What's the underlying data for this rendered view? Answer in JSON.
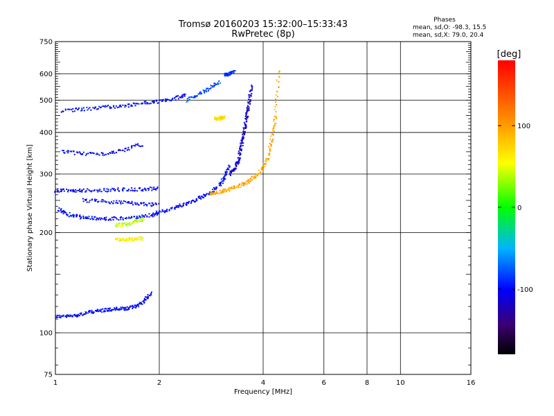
{
  "header": {
    "title_line1": "Tromsø 20160203 15:32:00–15:33:43",
    "title_line2": "RwPretec (8p)"
  },
  "phase_box": {
    "heading": "Phases",
    "line_o": "mean, sd,O: -98.3, 15.5",
    "line_x": "mean, sd,X:  79.0, 20.4"
  },
  "colorbar": {
    "label": "[deg]",
    "range": [
      -180,
      180
    ],
    "ticks": [
      {
        "value": 100,
        "label": "100"
      },
      {
        "value": 0,
        "label": "0"
      },
      {
        "value": -100,
        "label": "-100"
      }
    ]
  },
  "chart_data": {
    "type": "scatter",
    "title": "Tromsø 20160203 15:32:00–15:33:43",
    "subtitle": "RwPretec (8p)",
    "xlabel": "Frequency [MHz]",
    "ylabel": "Stationary phase Virtual Height [km]",
    "xscale": "log",
    "yscale": "log",
    "xlim": [
      1,
      16
    ],
    "ylim": [
      75,
      750
    ],
    "x_ticks": [
      {
        "value": 1,
        "label": "1"
      },
      {
        "value": 2,
        "label": "2"
      },
      {
        "value": 4,
        "label": "4"
      },
      {
        "value": 6,
        "label": "6"
      },
      {
        "value": 8,
        "label": "8"
      },
      {
        "value": 10,
        "label": "10"
      },
      {
        "value": 16,
        "label": "16"
      }
    ],
    "y_ticks": [
      {
        "value": 75,
        "label": "75"
      },
      {
        "value": 100,
        "label": "100"
      },
      {
        "value": 200,
        "label": "200"
      },
      {
        "value": 300,
        "label": "300"
      },
      {
        "value": 400,
        "label": "400"
      },
      {
        "value": 500,
        "label": "500"
      },
      {
        "value": 600,
        "label": "600"
      },
      {
        "value": 750,
        "label": "750"
      }
    ],
    "x_grid": [
      1,
      2,
      4,
      6,
      8,
      10,
      16
    ],
    "y_grid": [
      100,
      200,
      300,
      400,
      500,
      600
    ],
    "grid": true,
    "color_scale": "phase in degrees, -180 (black) to 180 (red)",
    "traces": [
      {
        "x": [
          1.0,
          1.1,
          1.2,
          1.3,
          1.4,
          1.5,
          1.6,
          1.7,
          1.8,
          1.9
        ],
        "y": [
          112,
          112,
          114,
          116,
          117,
          118,
          118,
          120,
          124,
          132
        ],
        "phase": -100
      },
      {
        "x": [
          1.02,
          1.1,
          1.2,
          1.35,
          1.5,
          1.7,
          1.9,
          2.0,
          2.2,
          2.4,
          2.6,
          2.8,
          3.0,
          3.1,
          3.2
        ],
        "y": [
          235,
          226,
          222,
          220,
          220,
          222,
          226,
          230,
          237,
          245,
          253,
          262,
          278,
          295,
          320
        ],
        "phase": -100
      },
      {
        "x": [
          2.8,
          3.0,
          3.2,
          3.4,
          3.6,
          3.8,
          4.0,
          4.15,
          4.25,
          4.35,
          4.45
        ],
        "y": [
          262,
          265,
          270,
          276,
          284,
          295,
          312,
          340,
          390,
          450,
          630
        ],
        "phase": 95
      },
      {
        "x": [
          3.2,
          3.3,
          3.4,
          3.45,
          3.5,
          3.55,
          3.6,
          3.65,
          3.7
        ],
        "y": [
          300,
          310,
          330,
          360,
          390,
          420,
          460,
          500,
          560
        ],
        "phase": -115
      },
      {
        "x": [
          1.0,
          1.1,
          1.2,
          1.4,
          1.6,
          1.8,
          2.0
        ],
        "y": [
          268,
          268,
          268,
          268,
          270,
          270,
          272
        ],
        "phase": -100
      },
      {
        "x": [
          1.2,
          1.4,
          1.6,
          1.8,
          2.0
        ],
        "y": [
          250,
          248,
          246,
          244,
          242
        ],
        "phase": -100
      },
      {
        "x": [
          1.05,
          1.2,
          1.4,
          1.6,
          1.8,
          2.0,
          2.2,
          2.4
        ],
        "y": [
          465,
          470,
          476,
          482,
          490,
          495,
          505,
          520
        ],
        "phase": -100
      },
      {
        "x": [
          2.4,
          2.6,
          2.8,
          3.0
        ],
        "y": [
          500,
          520,
          545,
          570
        ],
        "phase": -80
      },
      {
        "x": [
          1.05,
          1.2,
          1.4,
          1.6,
          1.8
        ],
        "y": [
          350,
          345,
          345,
          355,
          370
        ],
        "phase": -100
      },
      {
        "x": [
          1.5,
          1.6,
          1.7,
          1.8
        ],
        "y": [
          210,
          212,
          215,
          220
        ],
        "phase": 40
      },
      {
        "x": [
          1.5,
          1.6,
          1.7,
          1.8
        ],
        "y": [
          190,
          190,
          192,
          192
        ],
        "phase": 60
      },
      {
        "x": [
          2.9,
          3.0,
          3.1
        ],
        "y": [
          440,
          440,
          445
        ],
        "phase": 70
      },
      {
        "x": [
          3.1,
          3.2,
          3.3
        ],
        "y": [
          595,
          600,
          610
        ],
        "phase": -90
      }
    ]
  }
}
